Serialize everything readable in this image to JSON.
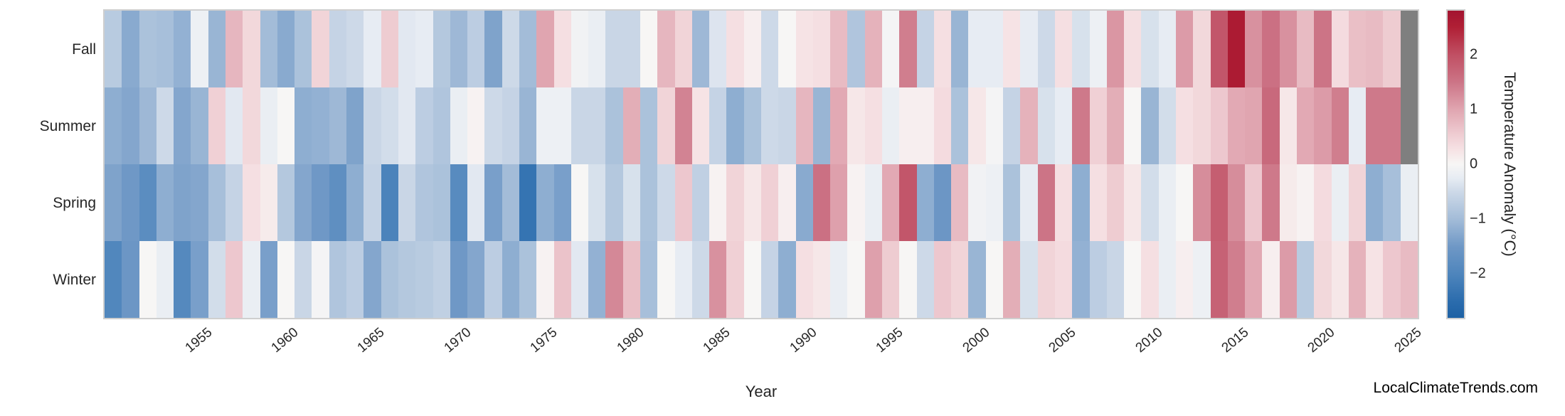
{
  "watermark": "LocalClimateTrends.com",
  "axes": {
    "x_label": "Year",
    "x_ticks": [
      1955,
      1960,
      1965,
      1970,
      1975,
      1980,
      1985,
      1990,
      1995,
      2000,
      2005,
      2010,
      2015,
      2020,
      2025
    ],
    "row_labels": [
      "Fall",
      "Summer",
      "Spring",
      "Winter"
    ]
  },
  "colorbar": {
    "label": "Temperature Anomaly (°C)",
    "ticks": [
      2,
      1,
      0,
      -1,
      -2
    ],
    "tick_labels": [
      "2",
      "1",
      "0",
      "−1",
      "−2"
    ],
    "vmin": -2.8,
    "vmax": 2.8
  },
  "chart_data": {
    "type": "heatmap",
    "title": "",
    "xlabel": "Year",
    "ylabel": "",
    "x": [
      1950,
      1951,
      1952,
      1953,
      1954,
      1955,
      1956,
      1957,
      1958,
      1959,
      1960,
      1961,
      1962,
      1963,
      1964,
      1965,
      1966,
      1967,
      1968,
      1969,
      1970,
      1971,
      1972,
      1973,
      1974,
      1975,
      1976,
      1977,
      1978,
      1979,
      1980,
      1981,
      1982,
      1983,
      1984,
      1985,
      1986,
      1987,
      1988,
      1989,
      1990,
      1991,
      1992,
      1993,
      1994,
      1995,
      1996,
      1997,
      1998,
      1999,
      2000,
      2001,
      2002,
      2003,
      2004,
      2005,
      2006,
      2007,
      2008,
      2009,
      2010,
      2011,
      2012,
      2013,
      2014,
      2015,
      2016,
      2017,
      2018,
      2019,
      2020,
      2021,
      2022,
      2023,
      2024,
      2025
    ],
    "value_unit": "°C anomaly",
    "series": [
      {
        "name": "Fall",
        "values": [
          -0.75,
          -1.25,
          -0.9,
          -0.95,
          -1.15,
          -0.15,
          -1.1,
          0.8,
          0.4,
          -1.0,
          -1.25,
          -0.9,
          0.45,
          -0.6,
          -0.5,
          -0.25,
          0.55,
          -0.3,
          -0.25,
          -0.8,
          -1.05,
          -0.7,
          -1.35,
          -0.5,
          -1.0,
          1.0,
          0.3,
          -0.1,
          -0.2,
          -0.55,
          -0.55,
          0.0,
          0.8,
          0.45,
          -1.05,
          -0.35,
          0.3,
          0.1,
          -0.5,
          0.0,
          0.25,
          0.3,
          0.75,
          -0.85,
          0.85,
          -0.05,
          1.4,
          -0.6,
          0.3,
          -1.1,
          -0.25,
          -0.25,
          0.25,
          -0.25,
          -0.5,
          0.3,
          -0.4,
          -0.15,
          1.15,
          0.3,
          -0.4,
          -0.25,
          1.1,
          0.4,
          1.9,
          2.6,
          1.2,
          1.55,
          1.2,
          0.75,
          1.5,
          0.35,
          0.7,
          0.75,
          0.55,
          null
        ]
      },
      {
        "name": "Summer",
        "values": [
          -1.2,
          -1.3,
          -1.05,
          -0.5,
          -1.3,
          -1.1,
          0.5,
          -0.3,
          0.4,
          -0.2,
          0.0,
          -1.2,
          -1.15,
          -1.05,
          -1.35,
          -0.55,
          -0.45,
          -0.3,
          -0.7,
          -0.85,
          -0.2,
          0.05,
          -0.5,
          -0.6,
          -1.1,
          -0.15,
          -0.15,
          -0.55,
          -0.55,
          -0.9,
          0.9,
          -0.9,
          0.45,
          1.35,
          0.25,
          -0.6,
          -1.2,
          -0.9,
          -0.5,
          -0.55,
          0.8,
          -1.1,
          0.95,
          0.2,
          0.3,
          -0.2,
          0.1,
          0.1,
          0.35,
          -0.9,
          0.2,
          -0.05,
          -0.6,
          0.85,
          -0.4,
          -0.25,
          1.45,
          0.5,
          0.9,
          0.0,
          -1.1,
          -0.45,
          0.3,
          0.4,
          0.6,
          0.95,
          1.0,
          1.65,
          0.2,
          0.95,
          1.1,
          1.4,
          -0.25,
          1.45,
          1.45,
          null
        ]
      },
      {
        "name": "Spring",
        "values": [
          -1.35,
          -1.5,
          -1.8,
          -1.2,
          -1.35,
          -1.3,
          -0.95,
          -0.6,
          0.3,
          0.15,
          -0.8,
          -1.3,
          -1.5,
          -1.75,
          -1.2,
          -0.6,
          -2.05,
          -0.55,
          -0.85,
          -0.9,
          -1.85,
          -0.3,
          -1.4,
          -1.0,
          -2.35,
          -1.2,
          -1.4,
          0.0,
          -0.4,
          -0.8,
          -0.4,
          -0.9,
          -0.5,
          0.6,
          -0.65,
          0.05,
          0.45,
          0.2,
          0.5,
          0.1,
          -1.25,
          1.55,
          1.05,
          0.05,
          -0.2,
          0.95,
          1.9,
          -1.2,
          -1.55,
          0.75,
          -0.1,
          -0.15,
          -0.9,
          -0.25,
          1.5,
          0.3,
          -1.2,
          0.3,
          0.55,
          0.2,
          -0.45,
          -0.2,
          0.0,
          1.25,
          1.8,
          1.25,
          0.6,
          1.45,
          0.15,
          0.05,
          0.35,
          -0.2,
          0.45,
          -1.2,
          -0.95,
          -0.2
        ]
      },
      {
        "name": "Winter",
        "values": [
          -1.95,
          -1.55,
          0.0,
          -0.2,
          -1.9,
          -1.4,
          -0.45,
          0.6,
          -0.2,
          -1.4,
          0.0,
          -0.55,
          -0.05,
          -0.85,
          -0.7,
          -1.3,
          -0.9,
          -0.8,
          -0.75,
          -0.65,
          -1.5,
          -1.3,
          -0.7,
          -1.2,
          -0.9,
          0.05,
          0.65,
          -0.3,
          -1.15,
          1.3,
          0.7,
          -0.95,
          0.0,
          -0.25,
          -0.5,
          1.2,
          0.5,
          0.0,
          -0.6,
          -1.2,
          0.3,
          0.2,
          -0.2,
          0.0,
          1.05,
          0.55,
          0.0,
          -0.5,
          0.6,
          0.45,
          -1.1,
          0.0,
          0.9,
          -0.4,
          0.45,
          0.35,
          -1.15,
          -0.7,
          -0.55,
          0.0,
          0.3,
          -0.2,
          0.1,
          -0.15,
          1.75,
          1.4,
          0.95,
          0.1,
          1.1,
          -0.75,
          0.4,
          0.2,
          0.85,
          0.25,
          0.6,
          0.75
        ]
      }
    ],
    "missing_cells": [
      [
        "Fall",
        2025
      ],
      [
        "Summer",
        2025
      ]
    ],
    "missing_color": "#7f7f7f",
    "palette_stops": [
      [
        -2.8,
        "#1d61a4"
      ],
      [
        -2.5,
        "#2b6cad"
      ],
      [
        -2.0,
        "#4e85bc"
      ],
      [
        -1.5,
        "#6f98c6"
      ],
      [
        -1.0,
        "#a3bcd8"
      ],
      [
        -0.5,
        "#cdd9e8"
      ],
      [
        -0.25,
        "#e7ecf3"
      ],
      [
        0.0,
        "#f7f6f5"
      ],
      [
        0.25,
        "#f6e3e5"
      ],
      [
        0.5,
        "#f0d0d5"
      ],
      [
        1.0,
        "#e0a5b0"
      ],
      [
        1.5,
        "#cc7486"
      ],
      [
        2.0,
        "#c04f63"
      ],
      [
        2.5,
        "#b01f35"
      ],
      [
        2.8,
        "#a31330"
      ]
    ],
    "legend_position": "right-colorbar",
    "grid": false,
    "xlim": [
      1950,
      2025
    ],
    "x_tick_rotation_deg": 40
  }
}
